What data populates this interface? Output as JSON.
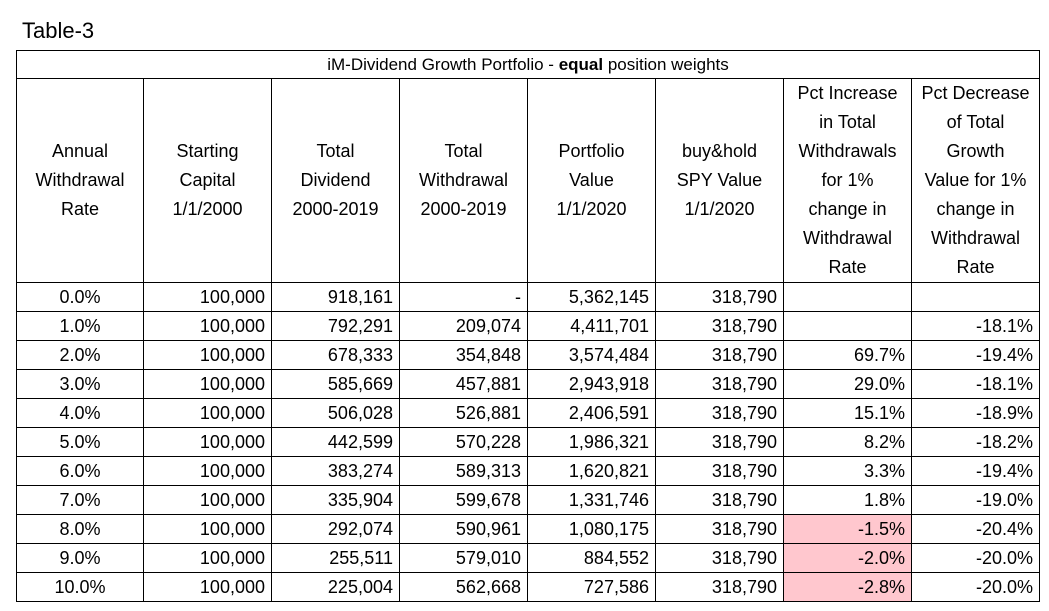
{
  "caption": "Table-3",
  "table_title": {
    "pre": "iM-Dividend Growth Portfolio - ",
    "bold": "equal",
    "post": " position weights"
  },
  "headers": [
    [
      "Annual",
      "Withdrawal",
      "Rate"
    ],
    [
      "Starting",
      "Capital",
      "1/1/2000"
    ],
    [
      "Total",
      "Dividend",
      "2000-2019"
    ],
    [
      "Total",
      "Withdrawal",
      "2000-2019"
    ],
    [
      "Portfolio",
      "Value",
      "1/1/2020"
    ],
    [
      "buy&hold",
      "SPY Value",
      "1/1/2020"
    ],
    [
      "Pct Increase",
      "in Total",
      "Withdrawals",
      "for 1%",
      "change in",
      "Withdrawal",
      "Rate"
    ],
    [
      "Pct Decrease",
      "of Total",
      "Growth",
      "Value for 1%",
      "change in",
      "Withdrawal",
      "Rate"
    ]
  ],
  "rows": [
    [
      "0.0%",
      "100,000",
      "918,161",
      "-",
      "5,362,145",
      "318,790",
      "",
      ""
    ],
    [
      "1.0%",
      "100,000",
      "792,291",
      "209,074",
      "4,411,701",
      "318,790",
      "",
      "-18.1%"
    ],
    [
      "2.0%",
      "100,000",
      "678,333",
      "354,848",
      "3,574,484",
      "318,790",
      "69.7%",
      "-19.4%"
    ],
    [
      "3.0%",
      "100,000",
      "585,669",
      "457,881",
      "2,943,918",
      "318,790",
      "29.0%",
      "-18.1%"
    ],
    [
      "4.0%",
      "100,000",
      "506,028",
      "526,881",
      "2,406,591",
      "318,790",
      "15.1%",
      "-18.9%"
    ],
    [
      "5.0%",
      "100,000",
      "442,599",
      "570,228",
      "1,986,321",
      "318,790",
      "8.2%",
      "-18.2%"
    ],
    [
      "6.0%",
      "100,000",
      "383,274",
      "589,313",
      "1,620,821",
      "318,790",
      "3.3%",
      "-19.4%"
    ],
    [
      "7.0%",
      "100,000",
      "335,904",
      "599,678",
      "1,331,746",
      "318,790",
      "1.8%",
      "-19.0%"
    ],
    [
      "8.0%",
      "100,000",
      "292,074",
      "590,961",
      "1,080,175",
      "318,790",
      "-1.5%",
      "-20.4%"
    ],
    [
      "9.0%",
      "100,000",
      "255,511",
      "579,010",
      "884,552",
      "318,790",
      "-2.0%",
      "-20.0%"
    ],
    [
      "10.0%",
      "100,000",
      "225,004",
      "562,668",
      "727,586",
      "318,790",
      "-2.8%",
      "-20.0%"
    ]
  ],
  "highlight": {
    "color": "#ffc7ce",
    "cells": [
      [
        8,
        6
      ],
      [
        9,
        6
      ],
      [
        10,
        6
      ]
    ]
  }
}
